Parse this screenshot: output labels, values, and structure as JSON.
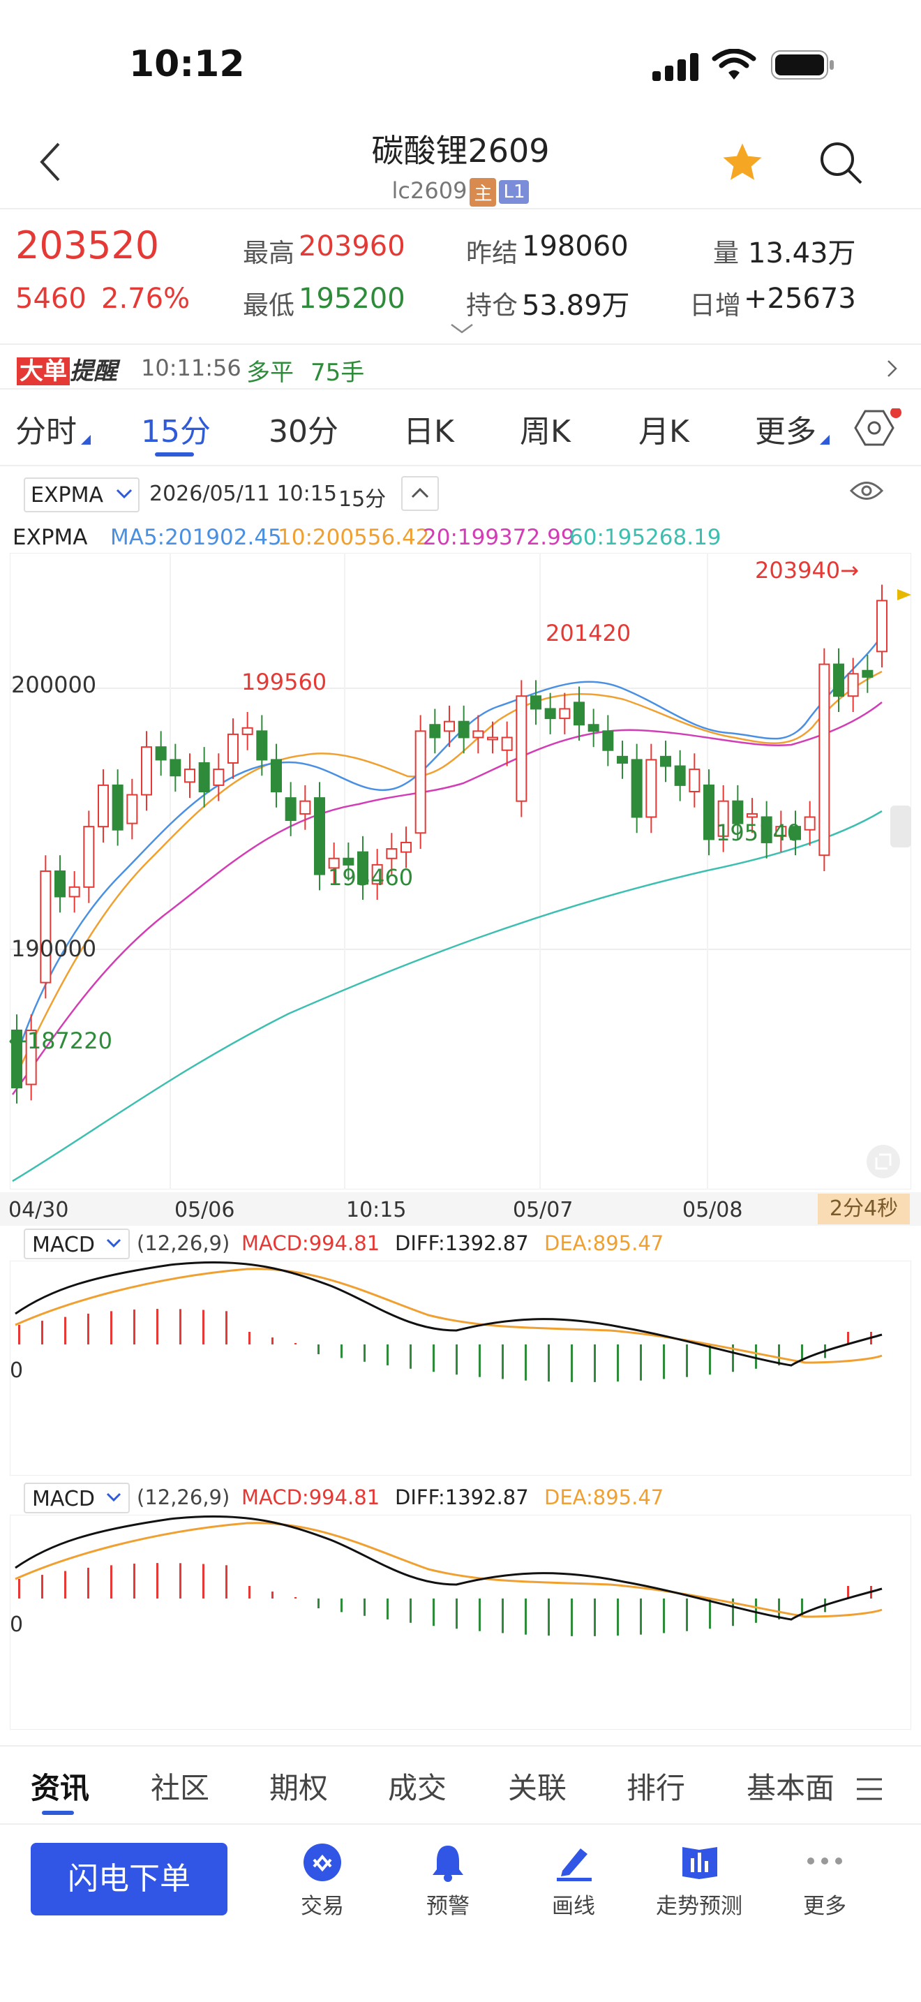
{
  "status": {
    "time": "10:12"
  },
  "header": {
    "title": "碳酸锂2609",
    "code": "lc2609",
    "badge_main": "主",
    "badge_level": "L1"
  },
  "quote": {
    "price": "203520",
    "change": "5460",
    "change_pct": "2.76%",
    "high_label": "最高",
    "high": "203960",
    "low_label": "最低",
    "low": "195200",
    "prev_settle_label": "昨结",
    "prev_settle": "198060",
    "open_int_label": "持仓",
    "open_int": "53.89万",
    "volume_label": "量",
    "volume": "13.43万",
    "daily_inc_label": "日增",
    "daily_inc": "+25673"
  },
  "alert": {
    "tag1": "大单",
    "tag2": "提醒",
    "time": "10:11:56",
    "type": "多平",
    "qty": "75手"
  },
  "tabs": [
    "分时",
    "15分",
    "30分",
    "日K",
    "周K",
    "月K",
    "更多"
  ],
  "active_tab": "15分",
  "chart_toolbar": {
    "indicator": "EXPMA",
    "datetime": "2026/05/11 10:15",
    "period": "15分"
  },
  "legend": {
    "name": "EXPMA",
    "ma5": "MA5:201902.45",
    "ma10": "10:200556.42",
    "ma20": "20:199372.99",
    "ma60": "60:195268.19"
  },
  "price_labels": {
    "y200000": "200000",
    "y190000": "190000",
    "high_last": "203940→",
    "peak1": "201420",
    "peak2": "199560",
    "low1": "193460",
    "low2": "195140",
    "low_first": "←187220"
  },
  "x_axis": [
    "04/30",
    "05/06",
    "10:15",
    "05/07",
    "05/08"
  ],
  "countdown": "2分4秒",
  "macd": {
    "name": "MACD",
    "params": "(12,26,9)",
    "macd": "MACD:994.81",
    "diff": "DIFF:1392.87",
    "dea": "DEA:895.47",
    "zero": "0"
  },
  "chart_data": {
    "type": "candlestick",
    "ylim": [
      185000,
      205000
    ],
    "candles": [
      {
        "o": 190000,
        "c": 188200
      },
      {
        "o": 188300,
        "c": 190000
      },
      {
        "o": 191500,
        "c": 195000
      },
      {
        "o": 195000,
        "c": 194200
      },
      {
        "o": 194200,
        "c": 194500
      },
      {
        "o": 194500,
        "c": 196400
      },
      {
        "o": 196400,
        "c": 197700
      },
      {
        "o": 197700,
        "c": 196300
      },
      {
        "o": 196500,
        "c": 197400
      },
      {
        "o": 197400,
        "c": 198900
      },
      {
        "o": 198900,
        "c": 198500
      },
      {
        "o": 198500,
        "c": 198000
      },
      {
        "o": 197800,
        "c": 198200
      },
      {
        "o": 198400,
        "c": 197500
      },
      {
        "o": 197700,
        "c": 198200
      },
      {
        "o": 198400,
        "c": 199300
      },
      {
        "o": 199300,
        "c": 199500
      },
      {
        "o": 199400,
        "c": 198500
      },
      {
        "o": 198500,
        "c": 197500
      },
      {
        "o": 197300,
        "c": 196600
      },
      {
        "o": 196800,
        "c": 197200
      },
      {
        "o": 197300,
        "c": 194900
      },
      {
        "o": 195100,
        "c": 195400
      },
      {
        "o": 195400,
        "c": 195200
      },
      {
        "o": 195600,
        "c": 194600
      },
      {
        "o": 194600,
        "c": 195200
      },
      {
        "o": 195400,
        "c": 195700
      },
      {
        "o": 195600,
        "c": 195900
      },
      {
        "o": 196200,
        "c": 199400
      },
      {
        "o": 199600,
        "c": 199200
      },
      {
        "o": 199400,
        "c": 199700
      },
      {
        "o": 199700,
        "c": 199200
      },
      {
        "o": 199200,
        "c": 199400
      },
      {
        "o": 199200,
        "c": 199200
      },
      {
        "o": 198800,
        "c": 199200
      },
      {
        "o": 197200,
        "c": 200500
      },
      {
        "o": 200500,
        "c": 200100
      },
      {
        "o": 200100,
        "c": 199800
      },
      {
        "o": 199800,
        "c": 200100
      },
      {
        "o": 200300,
        "c": 199600
      },
      {
        "o": 199600,
        "c": 199400
      },
      {
        "o": 199400,
        "c": 198800
      },
      {
        "o": 198600,
        "c": 198400
      },
      {
        "o": 198500,
        "c": 196700
      },
      {
        "o": 196700,
        "c": 198500
      },
      {
        "o": 198600,
        "c": 198300
      },
      {
        "o": 198300,
        "c": 197700
      },
      {
        "o": 197500,
        "c": 198200
      },
      {
        "o": 197700,
        "c": 196000
      },
      {
        "o": 196100,
        "c": 197200
      },
      {
        "o": 197200,
        "c": 196500
      },
      {
        "o": 196700,
        "c": 196800
      },
      {
        "o": 196700,
        "c": 195900
      },
      {
        "o": 196100,
        "c": 196400
      },
      {
        "o": 196400,
        "c": 196000
      },
      {
        "o": 196300,
        "c": 196700
      },
      {
        "o": 195500,
        "c": 201500
      },
      {
        "o": 201500,
        "c": 200500
      },
      {
        "o": 200500,
        "c": 201200
      },
      {
        "o": 201300,
        "c": 201100
      },
      {
        "o": 201900,
        "c": 203500
      }
    ]
  },
  "bottom_tabs": [
    "资讯",
    "社区",
    "期权",
    "成交",
    "关联",
    "排行",
    "基本面"
  ],
  "toolbar": {
    "order_button": "闪电下单",
    "items": [
      "交易",
      "预警",
      "画线",
      "走势预测",
      "更多"
    ]
  },
  "colors": {
    "up": "#e53935",
    "down": "#2e8b3a",
    "accent": "#2f5bd9"
  }
}
